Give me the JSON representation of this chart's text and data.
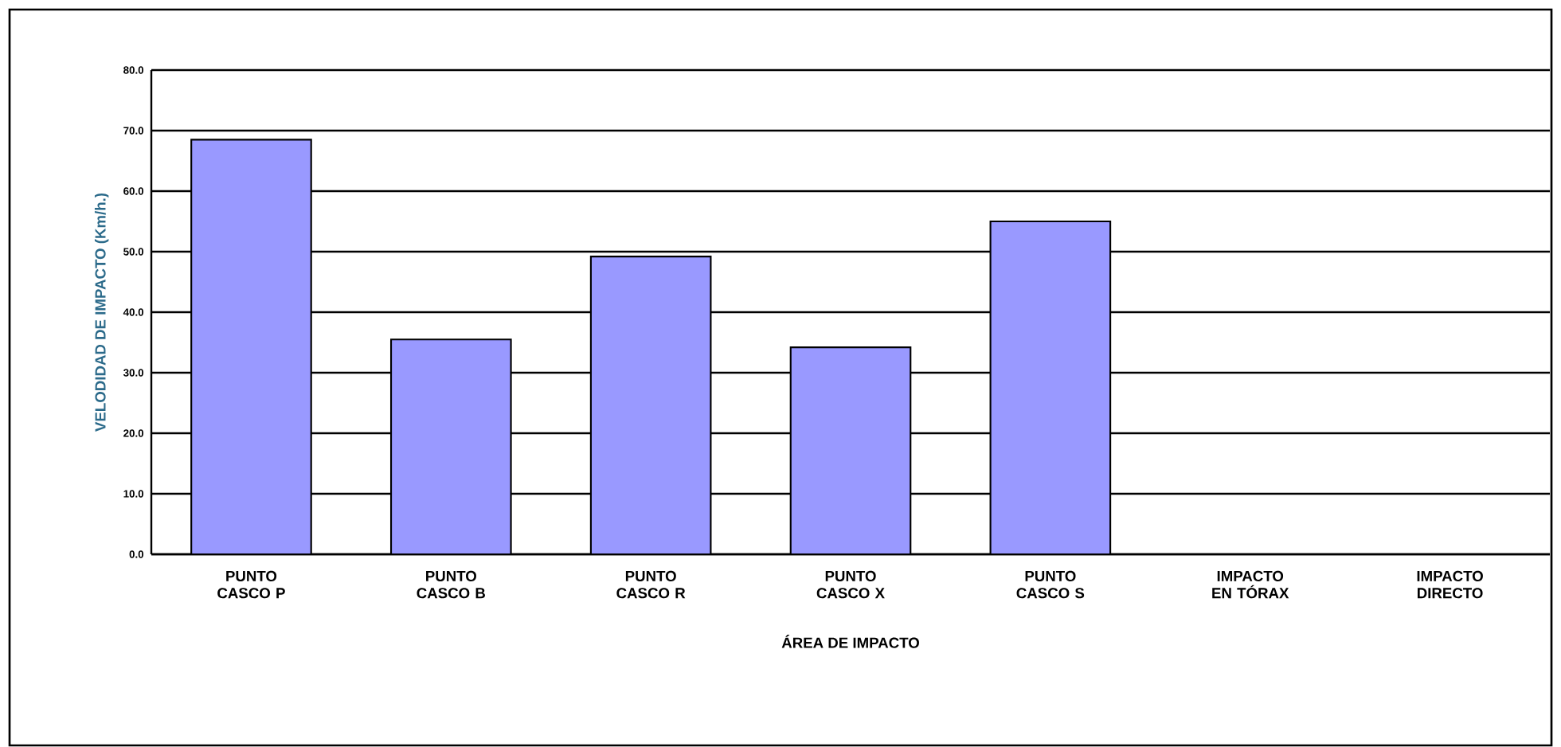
{
  "chart_data": {
    "type": "bar",
    "xlabel": "ÁREA DE IMPACTO",
    "ylabel": "VELODIDAD DE IMPACTO (Km/h.)",
    "categories": [
      "PUNTO CASCO P",
      "PUNTO CASCO B",
      "PUNTO CASCO R",
      "PUNTO CASCO X",
      "PUNTO CASCO S",
      "IMPACTO EN TÓRAX",
      "IMPACTO DIRECTO"
    ],
    "values": [
      68.5,
      35.5,
      49.2,
      34.2,
      55.0,
      null,
      null
    ],
    "color": "#9999ff",
    "ylim": [
      0,
      80
    ],
    "yticks": [
      {
        "value": 0,
        "label": "0.0"
      },
      {
        "value": 10,
        "label": "10.0"
      },
      {
        "value": 20,
        "label": "20.0"
      },
      {
        "value": 30,
        "label": "30.0"
      },
      {
        "value": 40,
        "label": "40.0"
      },
      {
        "value": 50,
        "label": "50.0"
      },
      {
        "value": 60,
        "label": "60.0"
      },
      {
        "value": 70,
        "label": "70.0"
      },
      {
        "value": 80,
        "label": "80.0"
      }
    ],
    "grid": "y"
  }
}
